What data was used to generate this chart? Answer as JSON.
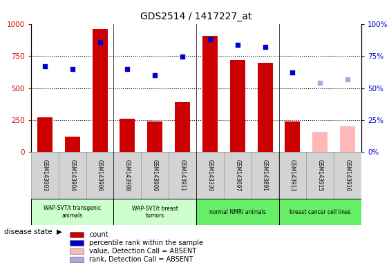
{
  "title": "GDS2514 / 1417227_at",
  "samples": [
    "GSM143903",
    "GSM143904",
    "GSM143906",
    "GSM143908",
    "GSM143909",
    "GSM143911",
    "GSM143330",
    "GSM143697",
    "GSM143891",
    "GSM143913",
    "GSM143915",
    "GSM143916"
  ],
  "count_values": [
    270,
    120,
    960,
    260,
    240,
    390,
    910,
    720,
    700,
    240,
    null,
    null
  ],
  "count_absent": [
    null,
    null,
    null,
    null,
    null,
    null,
    null,
    null,
    null,
    null,
    155,
    200
  ],
  "percentile_values": [
    670,
    650,
    860,
    650,
    600,
    745,
    880,
    840,
    820,
    620,
    null,
    null
  ],
  "percentile_absent": [
    null,
    null,
    null,
    null,
    null,
    null,
    null,
    null,
    null,
    null,
    540,
    570
  ],
  "group_defs": [
    {
      "label": "WAP-SVT/t transgenic\nanimals",
      "start": 0,
      "end": 3,
      "color": "#ccffcc"
    },
    {
      "label": "WAP-SVT/t breast\ntumors",
      "start": 3,
      "end": 6,
      "color": "#ccffcc"
    },
    {
      "label": "normal NMRI animals",
      "start": 6,
      "end": 9,
      "color": "#66ee66"
    },
    {
      "label": "breast cancer cell lines",
      "start": 9,
      "end": 12,
      "color": "#66ee66"
    }
  ],
  "ylim_left": [
    0,
    1000
  ],
  "ylim_right": [
    0,
    100
  ],
  "yticks_left": [
    0,
    250,
    500,
    750,
    1000
  ],
  "yticks_right": [
    0,
    25,
    50,
    75,
    100
  ],
  "bar_color": "#cc0000",
  "bar_absent_color": "#ffb8b8",
  "dot_color": "#0000cc",
  "dot_absent_color": "#aaaadd",
  "legend_items": [
    {
      "label": "count",
      "color": "#cc0000"
    },
    {
      "label": "percentile rank within the sample",
      "color": "#0000cc"
    },
    {
      "label": "value, Detection Call = ABSENT",
      "color": "#ffb8b8"
    },
    {
      "label": "rank, Detection Call = ABSENT",
      "color": "#aaaadd"
    }
  ]
}
